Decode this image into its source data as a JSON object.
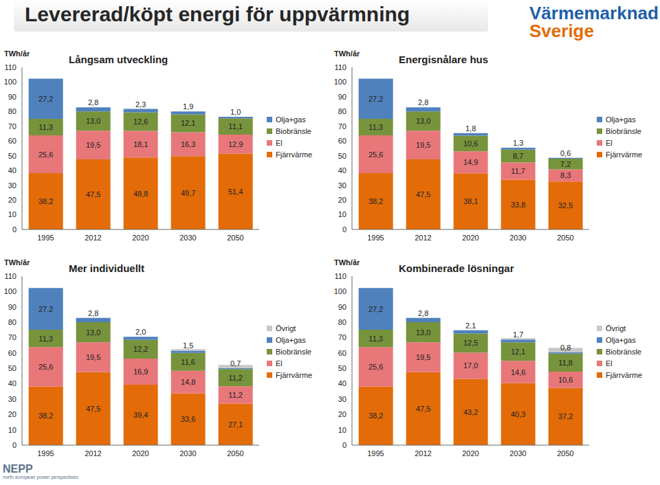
{
  "title": "Levererad/köpt energi för uppvärmning",
  "logos": {
    "top_right": [
      "Värmemarknad",
      "Sverige"
    ],
    "bottom_left": [
      "NEPP",
      "north european power perspectives"
    ]
  },
  "chart_data": [
    {
      "type": "bar",
      "title": "Långsam utveckling",
      "ylabel": "TWh/år",
      "stacked": true,
      "data_labels": true,
      "legend": "right",
      "ylim": [
        0,
        110
      ],
      "yticks": [
        0,
        10,
        20,
        30,
        40,
        50,
        60,
        70,
        80,
        90,
        100,
        110
      ],
      "categories": [
        "1995",
        "2012",
        "2020",
        "2030",
        "2050"
      ],
      "series": [
        {
          "name": "Fjärrvärme",
          "color": "#e36c09",
          "values": [
            38.2,
            47.5,
            48.8,
            49.7,
            51.4
          ],
          "value_labels": [
            "38,2",
            "47,5",
            "48,8",
            "49,7",
            "51,4"
          ]
        },
        {
          "name": "El",
          "color": "#e8777a",
          "values": [
            25.6,
            19.5,
            18.1,
            16.3,
            12.9
          ],
          "value_labels": [
            "25,6",
            "19,5",
            "18,1",
            "16,3",
            "12,9"
          ]
        },
        {
          "name": "Biobränsle",
          "color": "#77933c",
          "values": [
            11.3,
            13.0,
            12.6,
            12.1,
            11.1
          ],
          "value_labels": [
            "11,3",
            "13,0",
            "12,6",
            "12,1",
            "11,1"
          ]
        },
        {
          "name": "Olja+gas",
          "color": "#4f81bd",
          "values": [
            27.2,
            2.8,
            2.3,
            1.9,
            1.0
          ],
          "value_labels": [
            "27,2",
            "2,8",
            "2,3",
            "1,9",
            "1,0"
          ]
        }
      ]
    },
    {
      "type": "bar",
      "title": "Energisnålare hus",
      "ylabel": "TWh/år",
      "stacked": true,
      "data_labels": true,
      "legend": "right",
      "ylim": [
        0,
        110
      ],
      "yticks": [
        0,
        10,
        20,
        30,
        40,
        50,
        60,
        70,
        80,
        90,
        100,
        110
      ],
      "categories": [
        "1995",
        "2012",
        "2020",
        "2030",
        "2050"
      ],
      "series": [
        {
          "name": "Fjärrvärme",
          "color": "#e36c09",
          "values": [
            38.2,
            47.5,
            38.1,
            33.8,
            32.5
          ],
          "value_labels": [
            "38,2",
            "47,5",
            "38,1",
            "33,8",
            "32,5"
          ]
        },
        {
          "name": "El",
          "color": "#e8777a",
          "values": [
            25.6,
            19.5,
            14.9,
            11.7,
            8.3
          ],
          "value_labels": [
            "25,6",
            "19,5",
            "14,9",
            "11,7",
            "8,3"
          ]
        },
        {
          "name": "Biobränsle",
          "color": "#77933c",
          "values": [
            11.3,
            13.0,
            10.6,
            8.7,
            7.2
          ],
          "value_labels": [
            "11,3",
            "13,0",
            "10,6",
            "8,7",
            "7,2"
          ]
        },
        {
          "name": "Olja+gas",
          "color": "#4f81bd",
          "values": [
            27.2,
            2.8,
            1.8,
            1.3,
            0.6
          ],
          "value_labels": [
            "27,2",
            "2,8",
            "1,8",
            "1,3",
            "0,6"
          ]
        }
      ]
    },
    {
      "type": "bar",
      "title": "Mer individuellt",
      "ylabel": "TWh/år",
      "stacked": true,
      "data_labels": true,
      "legend": "right",
      "ylim": [
        0,
        110
      ],
      "yticks": [
        0,
        10,
        20,
        30,
        40,
        50,
        60,
        70,
        80,
        90,
        100,
        110
      ],
      "categories": [
        "1995",
        "2012",
        "2020",
        "2030",
        "2050"
      ],
      "series": [
        {
          "name": "Fjärrvärme",
          "color": "#e36c09",
          "values": [
            38.2,
            47.5,
            39.4,
            33.6,
            27.1
          ],
          "value_labels": [
            "38,2",
            "47,5",
            "39,4",
            "33,6",
            "27,1"
          ]
        },
        {
          "name": "El",
          "color": "#e8777a",
          "values": [
            25.6,
            19.5,
            16.9,
            14.8,
            11.2
          ],
          "value_labels": [
            "25,6",
            "19,5",
            "16,9",
            "14,8",
            "11,2"
          ]
        },
        {
          "name": "Biobränsle",
          "color": "#77933c",
          "values": [
            11.3,
            13.0,
            12.2,
            11.6,
            11.2
          ],
          "value_labels": [
            "11,3",
            "13,0",
            "12,2",
            "11,6",
            "11,2"
          ]
        },
        {
          "name": "Olja+gas",
          "color": "#4f81bd",
          "values": [
            27.2,
            2.8,
            2.0,
            1.5,
            0.7
          ],
          "value_labels": [
            "27,2",
            "2,8",
            "2,0",
            "1,5",
            "0,7"
          ]
        },
        {
          "name": "Övrigt",
          "color": "#c8c8c8",
          "values": [
            0,
            0,
            0,
            1,
            2
          ],
          "data_labels": false
        }
      ]
    },
    {
      "type": "bar",
      "title": "Kombinerade lösningar",
      "ylabel": "TWh/år",
      "stacked": true,
      "data_labels": true,
      "legend": "right",
      "ylim": [
        0,
        110
      ],
      "yticks": [
        0,
        10,
        20,
        30,
        40,
        50,
        60,
        70,
        80,
        90,
        100,
        110
      ],
      "categories": [
        "1995",
        "2012",
        "2020",
        "2030",
        "2050"
      ],
      "series": [
        {
          "name": "Fjärrvärme",
          "color": "#e36c09",
          "values": [
            38.2,
            47.5,
            43.2,
            40.3,
            37.2
          ],
          "value_labels": [
            "38,2",
            "47,5",
            "43,2",
            "40,3",
            "37,2"
          ]
        },
        {
          "name": "El",
          "color": "#e8777a",
          "values": [
            25.6,
            19.5,
            17.0,
            14.6,
            10.6
          ],
          "value_labels": [
            "25,6",
            "19,5",
            "17,0",
            "14,6",
            "10,6"
          ]
        },
        {
          "name": "Biobränsle",
          "color": "#77933c",
          "values": [
            11.3,
            13.0,
            12.5,
            12.1,
            11.8
          ],
          "value_labels": [
            "11,3",
            "13,0",
            "12,5",
            "12,1",
            "11,8"
          ]
        },
        {
          "name": "Olja+gas",
          "color": "#4f81bd",
          "values": [
            27.2,
            2.8,
            2.1,
            1.7,
            0.8
          ],
          "value_labels": [
            "27,2",
            "2,8",
            "2,1",
            "1,7",
            "0,8"
          ]
        },
        {
          "name": "Övrigt",
          "color": "#c8c8c8",
          "values": [
            0,
            0,
            0,
            1,
            3
          ],
          "data_labels": false
        }
      ]
    }
  ]
}
